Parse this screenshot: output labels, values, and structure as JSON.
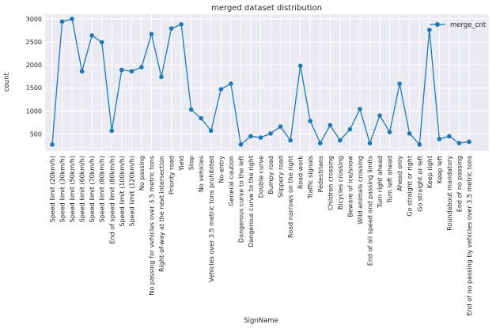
{
  "chart_data": {
    "type": "line",
    "title": "merged dataset distribution",
    "xlabel": "SignName",
    "ylabel": "count",
    "ylim": [
      130,
      3100
    ],
    "yticks": [
      500,
      1000,
      1500,
      2000,
      2500,
      3000
    ],
    "grid": true,
    "legend_position": "top-right",
    "colors": {
      "series": "#1f77b4",
      "plot_bg": "#eaeaf2",
      "grid": "#ffffff"
    },
    "categories": [
      "Speed limit (20km/h)",
      "Speed limit (30km/h)",
      "Speed limit (50km/h)",
      "Speed limit (60km/h)",
      "Speed limit (70km/h)",
      "Speed limit (80km/h)",
      "End of speed limit (80km/h)",
      "Speed limit (100km/h)",
      "Speed limit (120km/h)",
      "No passing",
      "No passing for vehicles over 3.5 metric tons",
      "Right-of-way at the next intersection",
      "Priority road",
      "Yield",
      "Stop",
      "No vehicles",
      "Vehicles over 3.5 metric tons prohibited",
      "No entry",
      "General caution",
      "Dangerous curve to the left",
      "Dangerous curve to the right",
      "Double curve",
      "Bumpy road",
      "Slippery road",
      "Road narrows on the right",
      "Road work",
      "Traffic signals",
      "Pedestrians",
      "Children crossing",
      "Bicycles crossing",
      "Beware of ice/snow",
      "Wild animals crossing",
      "End of all speed and passing limits",
      "Turn right ahead",
      "Turn left ahead",
      "Ahead only",
      "Go straight or right",
      "Go straight or left",
      "Keep right",
      "Keep left",
      "Roundabout mandatory",
      "End of no passing",
      "End of no passing by vehicles over 3.5 metric tons"
    ],
    "series": [
      {
        "name": "merge_cnt",
        "values": [
          270,
          2940,
          3000,
          1860,
          2640,
          2490,
          570,
          1890,
          1860,
          1950,
          2670,
          1740,
          2790,
          2880,
          1030,
          840,
          570,
          1470,
          1590,
          270,
          450,
          420,
          510,
          660,
          360,
          1980,
          780,
          300,
          690,
          360,
          600,
          1040,
          300,
          900,
          540,
          1590,
          510,
          270,
          2760,
          390,
          450,
          300,
          330
        ]
      }
    ]
  }
}
